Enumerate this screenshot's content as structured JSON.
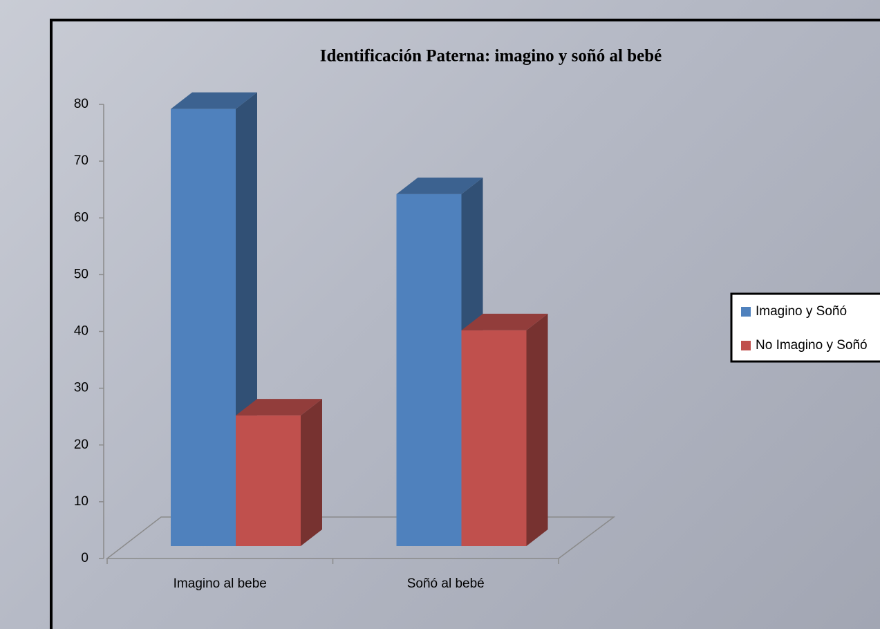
{
  "chart_data": {
    "type": "bar3d",
    "title": "Identificación Paterna: imagino y soñó al bebé",
    "categories": [
      "Imagino al bebe",
      "Soñó al bebé"
    ],
    "series": [
      {
        "name": "Imagino y Soñó",
        "color": "#4f81bd",
        "values": [
          77,
          62
        ]
      },
      {
        "name": "No Imagino y Soñó",
        "color": "#c0504d",
        "values": [
          23,
          38
        ]
      }
    ],
    "ylim": [
      0,
      80
    ],
    "yticks": [
      0,
      10,
      20,
      30,
      40,
      50,
      60,
      70,
      80
    ],
    "grid": false,
    "legend": "right"
  }
}
